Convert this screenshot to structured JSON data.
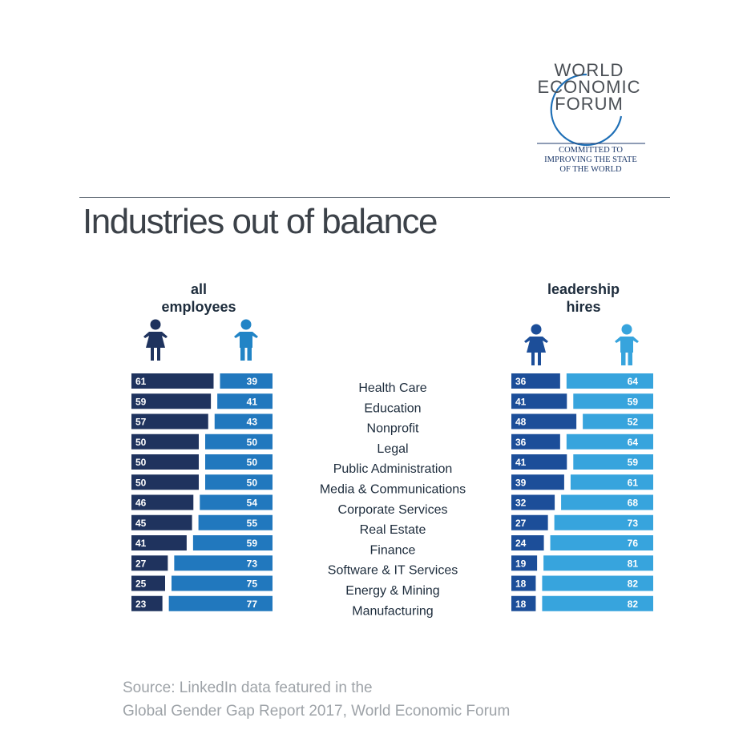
{
  "logo": {
    "lines": [
      "WORLD",
      "ECONOMIC",
      "FORUM"
    ],
    "tagline": [
      "COMMITTED TO",
      "IMPROVING THE STATE",
      "OF THE WORLD"
    ]
  },
  "title": "Industries out of balance",
  "groups": {
    "all_employees": [
      "all",
      "employees"
    ],
    "leadership_hires": [
      "leadership",
      "hires"
    ]
  },
  "colors": {
    "all_women": "#1f335e",
    "all_men": "#2178be",
    "lead_women": "#1c4e99",
    "lead_men": "#37a4dd",
    "icon_women_all": "#1f335e",
    "icon_men_all": "#2184c6",
    "icon_women_lead": "#1c4e99",
    "icon_men_lead": "#37a4dd"
  },
  "chart_data": {
    "type": "bar",
    "orientation": "horizontal",
    "stacked": "diverging",
    "categories": [
      "Health Care",
      "Education",
      "Nonprofit",
      "Legal",
      "Public Administration",
      "Media & Communications",
      "Corporate Services",
      "Real Estate",
      "Finance",
      "Software & IT Services",
      "Energy & Mining",
      "Manufacturing"
    ],
    "panels": [
      {
        "name": "all employees",
        "series": [
          {
            "icon": "woman-icon",
            "values": [
              61,
              59,
              57,
              50,
              50,
              50,
              46,
              45,
              41,
              27,
              25,
              23
            ]
          },
          {
            "icon": "man-icon",
            "values": [
              39,
              41,
              43,
              50,
              50,
              50,
              54,
              55,
              59,
              73,
              75,
              77
            ]
          }
        ]
      },
      {
        "name": "leadership hires",
        "series": [
          {
            "icon": "woman-icon",
            "values": [
              36,
              41,
              48,
              36,
              41,
              39,
              32,
              27,
              24,
              19,
              18,
              18
            ]
          },
          {
            "icon": "man-icon",
            "values": [
              64,
              59,
              52,
              64,
              59,
              61,
              68,
              73,
              76,
              81,
              82,
              82
            ]
          }
        ]
      }
    ],
    "xlim": [
      0,
      100
    ],
    "legend": "icons"
  },
  "source": [
    "Source: LinkedIn data featured in the",
    "Global Gender Gap Report 2017, World Economic Forum"
  ]
}
